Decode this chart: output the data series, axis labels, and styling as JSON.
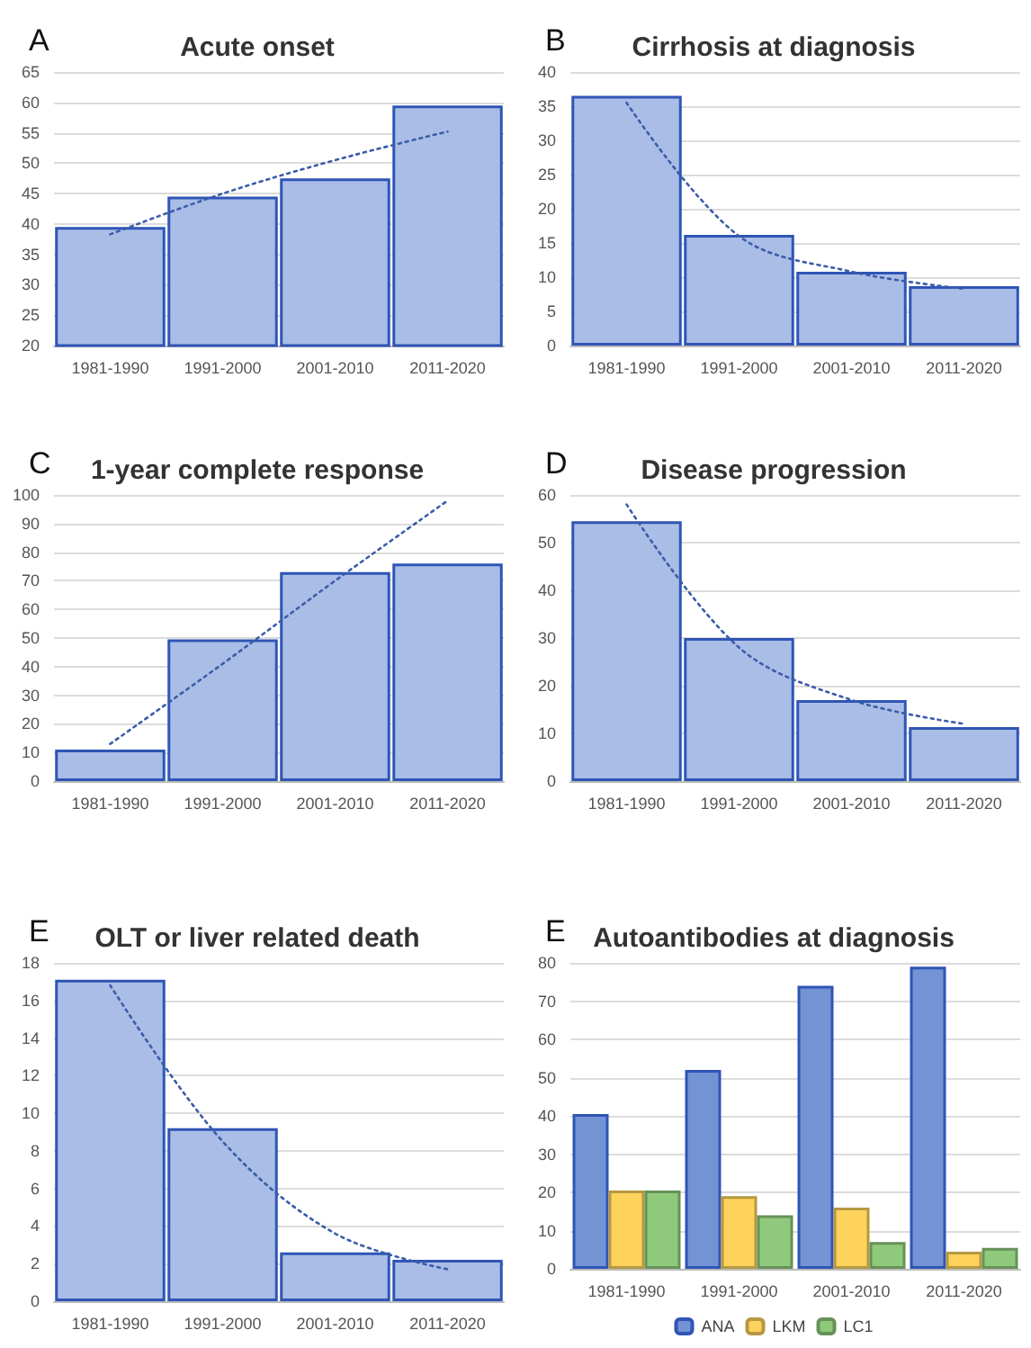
{
  "chart_data": [
    {
      "type": "bar",
      "title": "Acute onset",
      "annotations": [
        "A"
      ],
      "categories": [
        "1981-1990",
        "1991-2000",
        "2001-2010",
        "2011-2020"
      ],
      "ylim": [
        20,
        65
      ],
      "yticks": [
        20,
        25,
        30,
        35,
        40,
        45,
        50,
        55,
        60,
        65
      ],
      "grid": "y",
      "legend": false,
      "series": [
        {
          "color": "#a9bde6",
          "values": [
            39.5,
            44.5,
            47.5,
            59.5
          ]
        },
        {
          "type": "line",
          "color": "#3b5ca8",
          "x": [
            "1981-1990",
            "1991-2000",
            "2001-2010",
            "2011-2020"
          ],
          "values": [
            38.3,
            45,
            50.5,
            55.2
          ],
          "line_style": "dotted",
          "marker": "none"
        }
      ]
    },
    {
      "type": "bar",
      "title": "Cirrhosis at diagnosis",
      "annotations": [
        "B"
      ],
      "categories": [
        "1981-1990",
        "1991-2000",
        "2001-2010",
        "2011-2020"
      ],
      "ylim": [
        0,
        40
      ],
      "yticks": [
        0,
        5,
        10,
        15,
        20,
        25,
        30,
        35,
        40
      ],
      "grid": "y",
      "legend": false,
      "series": [
        {
          "color": "#a9bde6",
          "values": [
            36.5,
            16.2,
            10.8,
            8.7
          ]
        },
        {
          "type": "line",
          "color": "#3b5ca8",
          "x": [
            "1981-1990",
            "1991-2000",
            "2001-2010",
            "2011-2020"
          ],
          "values": [
            35.5,
            16,
            10.8,
            8.3
          ],
          "line_style": "dotted",
          "marker": "none"
        }
      ]
    },
    {
      "type": "bar",
      "title": "1-year complete response",
      "annotations": [
        "C"
      ],
      "categories": [
        "1981-1990",
        "1991-2000",
        "2001-2010",
        "2011-2020"
      ],
      "ylim": [
        0,
        100
      ],
      "yticks": [
        0,
        10,
        20,
        30,
        40,
        50,
        60,
        70,
        80,
        90,
        100
      ],
      "grid": "y",
      "legend": false,
      "series": [
        {
          "color": "#a9bde6",
          "values": [
            11,
            49.5,
            73,
            76
          ]
        },
        {
          "type": "line",
          "color": "#3b5ca8",
          "x": [
            "1981-1990",
            "1991-2000",
            "2001-2010",
            "2011-2020"
          ],
          "values": [
            13,
            41,
            70,
            98
          ],
          "line_style": "dotted",
          "marker": "none"
        }
      ]
    },
    {
      "type": "bar",
      "title": "Disease progression",
      "annotations": [
        "D"
      ],
      "categories": [
        "1981-1990",
        "1991-2000",
        "2001-2010",
        "2011-2020"
      ],
      "ylim": [
        0,
        60
      ],
      "yticks": [
        0,
        10,
        20,
        30,
        40,
        50,
        60
      ],
      "grid": "y",
      "legend": false,
      "series": [
        {
          "color": "#a9bde6",
          "values": [
            54.5,
            30,
            17,
            11.3
          ]
        },
        {
          "type": "line",
          "color": "#3b5ca8",
          "x": [
            "1981-1990",
            "1991-2000",
            "2001-2010",
            "2011-2020"
          ],
          "values": [
            58,
            28,
            17,
            12
          ],
          "line_style": "dotted",
          "marker": "none"
        }
      ]
    },
    {
      "type": "bar",
      "title": "OLT or liver related death",
      "annotations": [
        "E"
      ],
      "categories": [
        "1981-1990",
        "1991-2000",
        "2001-2010",
        "2011-2020"
      ],
      "ylim": [
        0,
        18
      ],
      "yticks": [
        0,
        2,
        4,
        6,
        8,
        10,
        12,
        14,
        16,
        18
      ],
      "grid": "y",
      "legend": false,
      "series": [
        {
          "color": "#a9bde6",
          "values": [
            17.1,
            9.2,
            2.6,
            2.2
          ]
        },
        {
          "type": "line",
          "color": "#3b5ca8",
          "x": [
            "1981-1990",
            "1991-2000",
            "2001-2010",
            "2011-2020"
          ],
          "values": [
            16.8,
            8.5,
            3.6,
            1.7
          ],
          "line_style": "dotted",
          "marker": "none"
        }
      ]
    },
    {
      "type": "bar",
      "title": "Autoantibodies at diagnosis",
      "annotations": [
        "E"
      ],
      "categories": [
        "1981-1990",
        "1991-2000",
        "2001-2010",
        "2011-2020"
      ],
      "ylim": [
        0,
        80
      ],
      "yticks": [
        0,
        10,
        20,
        30,
        40,
        50,
        60,
        70,
        80
      ],
      "grid": "y",
      "legend": "bottom",
      "series": [
        {
          "name": "ANA",
          "color": "#7393d4",
          "values": [
            40.5,
            52,
            74,
            79
          ]
        },
        {
          "name": "LKM",
          "color": "#fdd35c",
          "values": [
            20.5,
            19,
            16,
            4.5
          ]
        },
        {
          "name": "LC1",
          "color": "#8fca7c",
          "values": [
            20.5,
            14,
            7,
            5.5
          ]
        }
      ]
    }
  ]
}
